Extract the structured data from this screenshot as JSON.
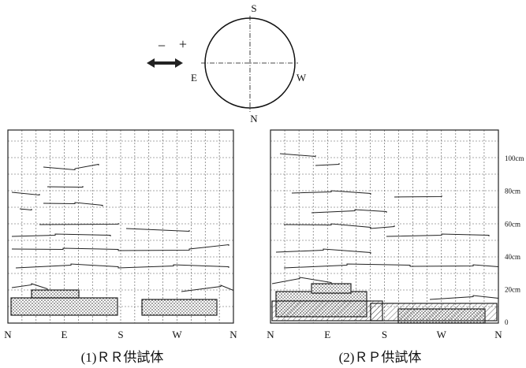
{
  "compass": {
    "top": "S",
    "bottom": "N",
    "left": "E",
    "right": "W",
    "minus": "−",
    "plus": "+"
  },
  "panels": [
    {
      "caption": "(1)ＲＲ供試体",
      "axis_labels": [
        "N",
        "E",
        "S",
        "W",
        "N"
      ]
    },
    {
      "caption": "(2)ＲＰ供試体",
      "axis_labels": [
        "N",
        "E",
        "S",
        "W",
        "N"
      ]
    }
  ],
  "height_scale": [
    "100cm",
    "80cm",
    "60cm",
    "40cm",
    "20cm",
    "0"
  ]
}
